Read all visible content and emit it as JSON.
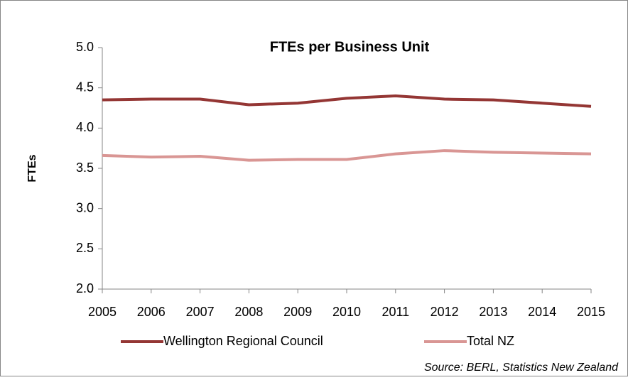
{
  "chart_data": {
    "type": "line",
    "title": "FTEs per Business Unit",
    "ylabel": "FTEs",
    "source": "Source: BERL, Statistics New Zealand",
    "x": [
      2005,
      2006,
      2007,
      2008,
      2009,
      2010,
      2011,
      2012,
      2013,
      2014,
      2015
    ],
    "xlim": [
      2005,
      2015
    ],
    "xticks": [
      2005,
      2006,
      2007,
      2008,
      2009,
      2010,
      2011,
      2012,
      2013,
      2014,
      2015
    ],
    "ylim": [
      2,
      5
    ],
    "yticks": [
      {
        "value": 2,
        "label": "2.0"
      },
      {
        "value": 2.5,
        "label": "2.5"
      },
      {
        "value": 3,
        "label": "3.0"
      },
      {
        "value": 3.5,
        "label": "3.5"
      },
      {
        "value": 4,
        "label": "4.0"
      },
      {
        "value": 4.5,
        "label": "4.5"
      },
      {
        "value": 5,
        "label": "5.0"
      }
    ],
    "grid": false,
    "legend": "bottom",
    "series": [
      {
        "name": "Wellington Regional Council",
        "color": "#943634",
        "values": [
          4.35,
          4.36,
          4.36,
          4.29,
          4.31,
          4.37,
          4.4,
          4.36,
          4.35,
          4.31,
          4.27
        ]
      },
      {
        "name": "Total NZ",
        "color": "#d99694",
        "values": [
          3.66,
          3.64,
          3.65,
          3.6,
          3.61,
          3.61,
          3.68,
          3.72,
          3.7,
          3.69,
          3.68
        ]
      }
    ]
  }
}
